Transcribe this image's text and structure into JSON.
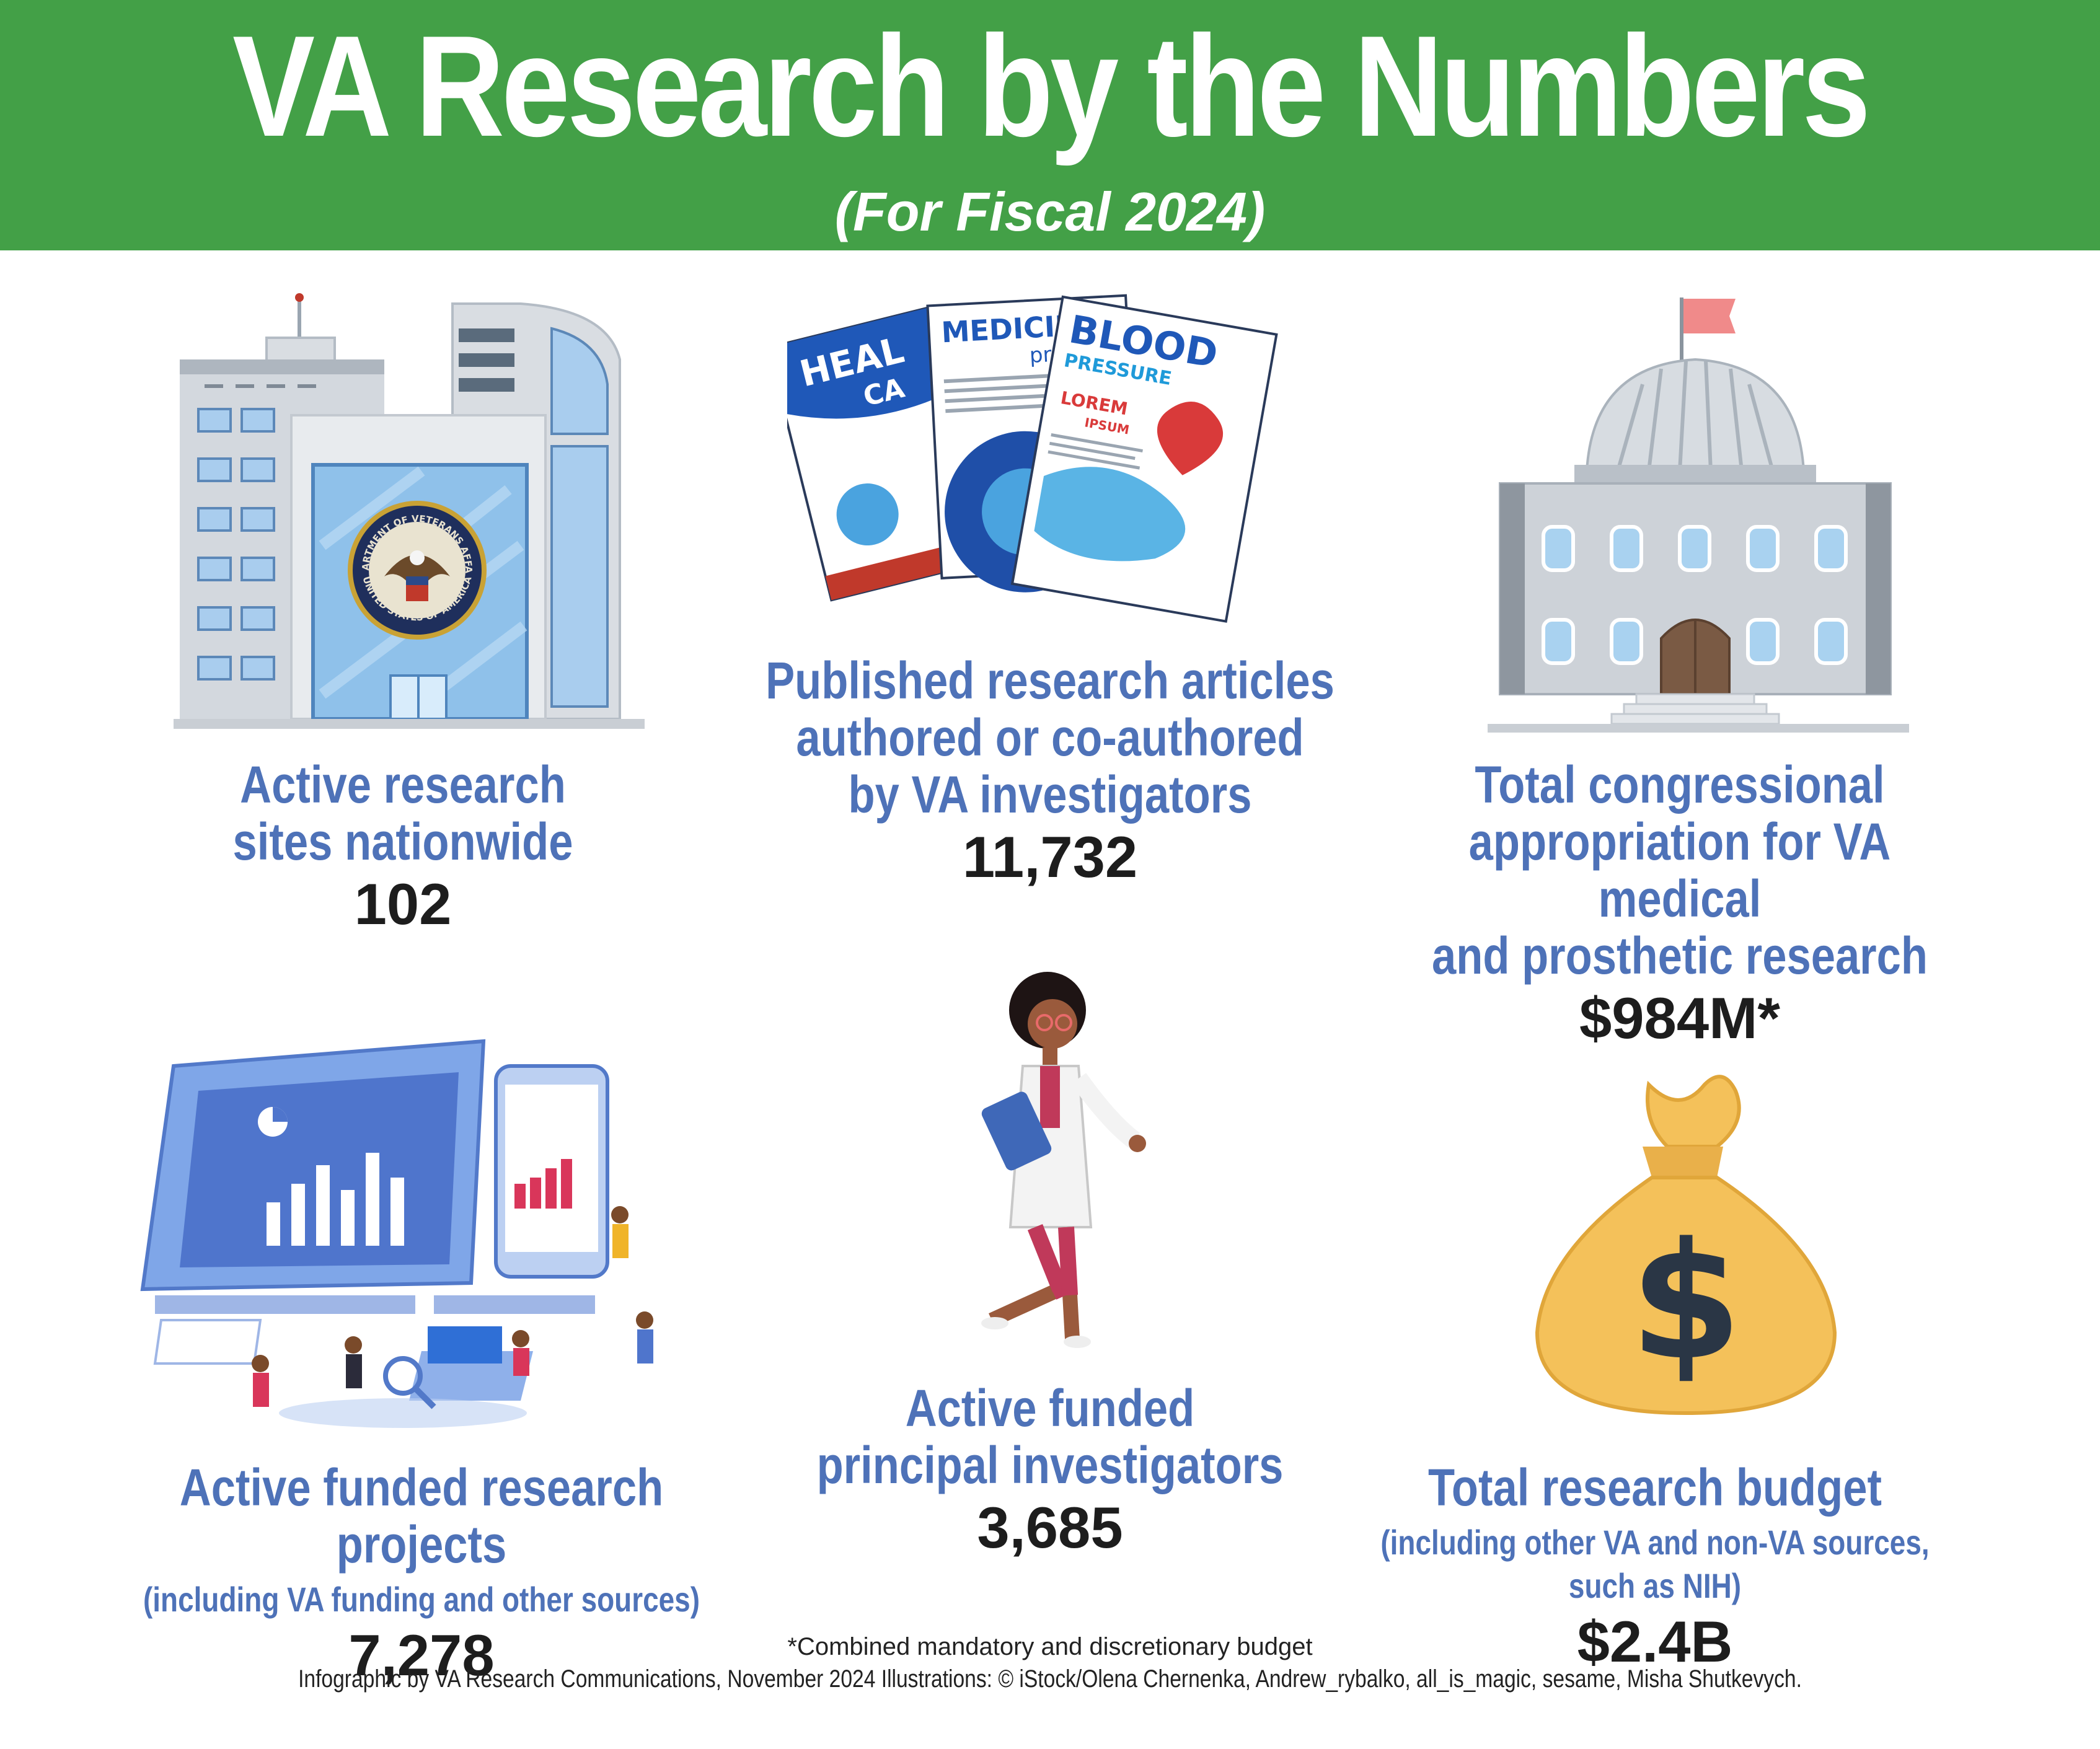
{
  "header": {
    "title": "VA Research by the Numbers",
    "subtitle": "(For Fiscal 2024)"
  },
  "seal": {
    "text_top": "DEPARTMENT OF VETERANS AFFAIRS",
    "text_bottom": "UNITED STATES OF AMERICA"
  },
  "magazines": {
    "cover1": [
      "HEAL",
      "CA"
    ],
    "cover2": [
      "MEDICIN",
      "propo"
    ],
    "cover3": [
      "BLOOD",
      "PRESSURE",
      "LOREM",
      "IPSUM"
    ]
  },
  "stats": [
    {
      "label": [
        "Active research",
        "sites nationwide"
      ],
      "value": "102"
    },
    {
      "label": [
        "Published research articles",
        "authored or co-authored",
        "by VA investigators"
      ],
      "value": "11,732"
    },
    {
      "label": [
        "Total congressional",
        "appropriation for VA medical",
        "and prosthetic research"
      ],
      "value": "$984M*"
    },
    {
      "label": [
        "Active funded research projects"
      ],
      "sublabel": "(including VA funding and other sources)",
      "value": "7,278"
    },
    {
      "label": [
        "Active funded",
        "principal investigators"
      ],
      "value": "3,685"
    },
    {
      "label": [
        "Total research budget"
      ],
      "sublabel": "(including other VA and non-VA sources, such as NIH)",
      "value": "$2.4B"
    }
  ],
  "footnote": "*Combined mandatory and discretionary budget",
  "credits": "Infographic by VA Research Communications, November 2024 Illustrations: © iStock/Olena Chernenka, Andrew_rybalko, all_is_magic, sesame, Misha Shutkevych.",
  "colors": {
    "header_green": "#43a047",
    "label_blue": "#4e72b8",
    "value_black": "#1d1d1d",
    "money_bag": "#f4c15a"
  }
}
